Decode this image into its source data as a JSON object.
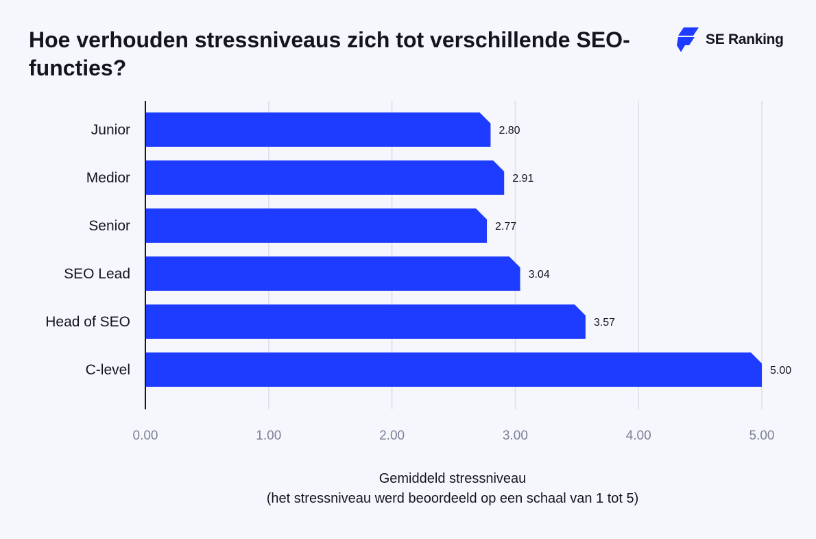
{
  "title": "Hoe verhouden stressniveaus zich tot verschillende SEO-functies?",
  "brand": {
    "name": "SE Ranking",
    "icon": "se-ranking-logo-icon",
    "color": "#1e3cff"
  },
  "chart_data": {
    "type": "bar",
    "orientation": "horizontal",
    "categories": [
      "Junior",
      "Medior",
      "Senior",
      "SEO Lead",
      "Head of SEO",
      "C-level"
    ],
    "values": [
      2.8,
      2.91,
      2.77,
      3.04,
      3.57,
      5.0
    ],
    "value_labels": [
      "2.80",
      "2.91",
      "2.77",
      "3.04",
      "3.57",
      "5.00"
    ],
    "xlim": [
      0,
      5
    ],
    "xticks": [
      0,
      1,
      2,
      3,
      4,
      5
    ],
    "xtick_labels": [
      "0.00",
      "1.00",
      "2.00",
      "3.00",
      "4.00",
      "5.00"
    ],
    "xlabel": "Gemiddeld stressniveau",
    "xlabel_sub": "(het stressniveau werd beoordeeld op een schaal van 1 tot 5)",
    "grid": true,
    "bar_color": "#1e3cff",
    "grid_color": "#dcdfe8"
  }
}
